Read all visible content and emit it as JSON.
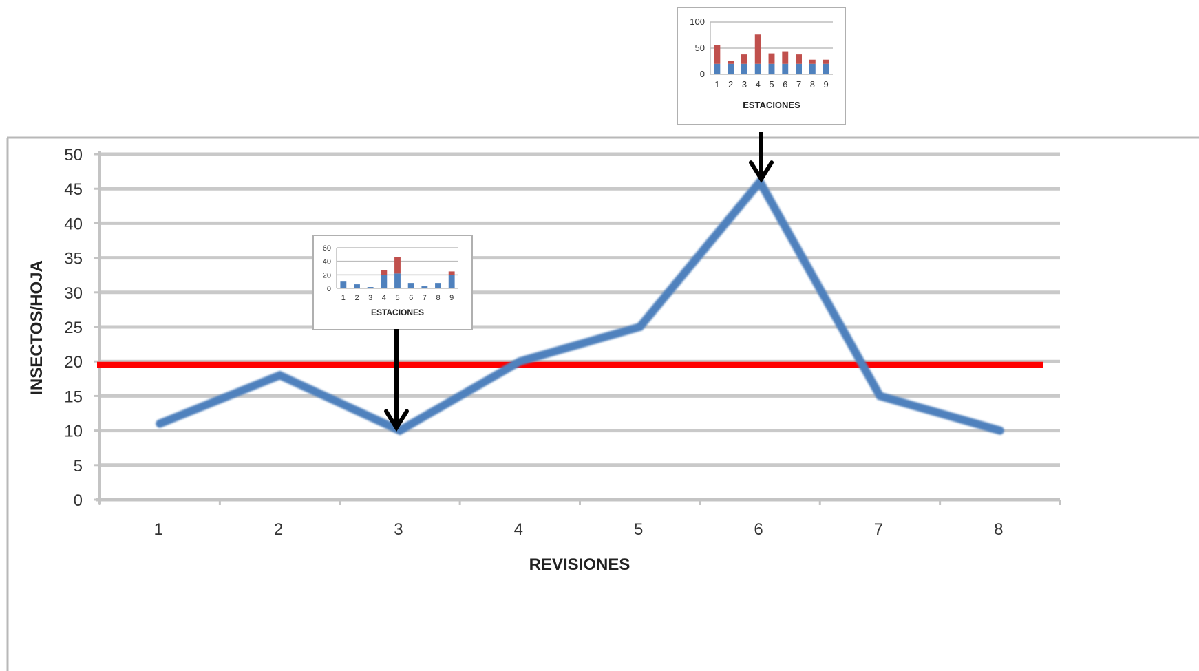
{
  "chart_data": [
    {
      "type": "line",
      "xlabel": "REVISIONES",
      "ylabel": "INSECTOS/HOJA",
      "categories": [
        "1",
        "2",
        "3",
        "4",
        "5",
        "6",
        "7",
        "8"
      ],
      "series": [
        {
          "values": [
            11,
            18,
            10,
            20,
            25,
            46,
            15,
            10
          ],
          "color": "#4f81bd"
        }
      ],
      "threshold": {
        "value": 19.5,
        "color": "#ff0000"
      },
      "ylim": [
        0,
        50
      ],
      "yticks": [
        0,
        5,
        10,
        15,
        20,
        25,
        30,
        35,
        40,
        45,
        50
      ],
      "grid": true,
      "legend": "none"
    },
    {
      "type": "bar",
      "stacked": true,
      "xlabel": "ESTACIONES",
      "categories": [
        "1",
        "2",
        "3",
        "4",
        "5",
        "6",
        "7",
        "8",
        "9"
      ],
      "series": [
        {
          "values": [
            20,
            20,
            20,
            20,
            20,
            20,
            20,
            20,
            20
          ],
          "color": "#4f81bd"
        },
        {
          "values": [
            36,
            6,
            18,
            56,
            20,
            24,
            18,
            8,
            8
          ],
          "color": "#c0504d"
        }
      ],
      "ylim": [
        0,
        100
      ],
      "yticks": [
        0,
        50,
        100
      ],
      "annotates_revision": "6"
    },
    {
      "type": "bar",
      "stacked": true,
      "xlabel": "ESTACIONES",
      "categories": [
        "1",
        "2",
        "3",
        "4",
        "5",
        "6",
        "7",
        "8",
        "9"
      ],
      "series": [
        {
          "values": [
            10,
            6,
            2,
            20,
            22,
            8,
            3,
            8,
            20
          ],
          "color": "#4f81bd"
        },
        {
          "values": [
            0,
            0,
            0,
            7,
            24,
            0,
            0,
            0,
            5
          ],
          "color": "#c0504d"
        }
      ],
      "ylim": [
        0,
        60
      ],
      "yticks": [
        0,
        20,
        40,
        60
      ],
      "annotates_revision": "3"
    }
  ]
}
